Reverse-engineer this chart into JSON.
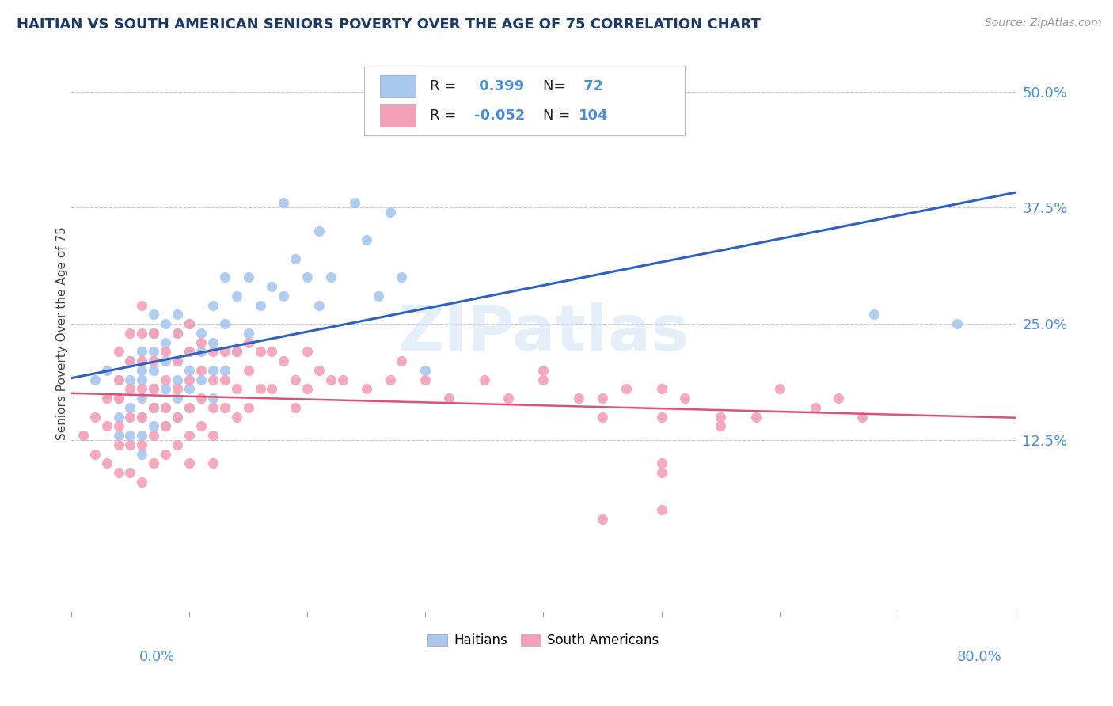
{
  "title": "HAITIAN VS SOUTH AMERICAN SENIORS POVERTY OVER THE AGE OF 75 CORRELATION CHART",
  "source": "Source: ZipAtlas.com",
  "ylabel": "Seniors Poverty Over the Age of 75",
  "haitian_R": 0.399,
  "haitian_N": 72,
  "southam_R": -0.052,
  "southam_N": 104,
  "haitian_color": "#A8C8F0",
  "southam_color": "#F4A0B8",
  "haitian_line_color": "#3060C0",
  "southam_line_color": "#E05070",
  "watermark": "ZIPatlas",
  "background_color": "#FFFFFF",
  "grid_color": "#C8C8D8",
  "title_color": "#1A3A6A",
  "tick_label_color": "#4A90D9",
  "legend_label_haitian": "Haitians",
  "legend_label_southam": "South Americans",
  "xmin": 0.0,
  "xmax": 0.8,
  "ymin": -0.06,
  "ymax": 0.54,
  "ytick_vals": [
    0.125,
    0.25,
    0.375,
    0.5
  ],
  "ytick_labels": [
    "12.5%",
    "25.0%",
    "37.5%",
    "50.0%"
  ],
  "haitian_x": [
    0.02,
    0.03,
    0.04,
    0.04,
    0.04,
    0.04,
    0.05,
    0.05,
    0.05,
    0.05,
    0.06,
    0.06,
    0.06,
    0.06,
    0.06,
    0.06,
    0.06,
    0.07,
    0.07,
    0.07,
    0.07,
    0.07,
    0.07,
    0.07,
    0.08,
    0.08,
    0.08,
    0.08,
    0.08,
    0.08,
    0.09,
    0.09,
    0.09,
    0.09,
    0.09,
    0.09,
    0.1,
    0.1,
    0.1,
    0.1,
    0.1,
    0.11,
    0.11,
    0.11,
    0.12,
    0.12,
    0.12,
    0.12,
    0.13,
    0.13,
    0.13,
    0.14,
    0.14,
    0.15,
    0.15,
    0.16,
    0.17,
    0.18,
    0.18,
    0.19,
    0.2,
    0.21,
    0.21,
    0.22,
    0.24,
    0.25,
    0.26,
    0.27,
    0.28,
    0.3,
    0.68,
    0.75
  ],
  "haitian_y": [
    0.19,
    0.2,
    0.19,
    0.17,
    0.15,
    0.13,
    0.21,
    0.19,
    0.16,
    0.13,
    0.22,
    0.2,
    0.19,
    0.17,
    0.15,
    0.13,
    0.11,
    0.26,
    0.24,
    0.22,
    0.2,
    0.18,
    0.16,
    0.14,
    0.25,
    0.23,
    0.21,
    0.18,
    0.16,
    0.14,
    0.26,
    0.24,
    0.21,
    0.19,
    0.17,
    0.15,
    0.25,
    0.22,
    0.2,
    0.18,
    0.16,
    0.24,
    0.22,
    0.19,
    0.27,
    0.23,
    0.2,
    0.17,
    0.3,
    0.25,
    0.2,
    0.28,
    0.22,
    0.3,
    0.24,
    0.27,
    0.29,
    0.38,
    0.28,
    0.32,
    0.3,
    0.35,
    0.27,
    0.3,
    0.38,
    0.34,
    0.28,
    0.37,
    0.3,
    0.2,
    0.26,
    0.25
  ],
  "southam_x": [
    0.01,
    0.02,
    0.02,
    0.03,
    0.03,
    0.03,
    0.04,
    0.04,
    0.04,
    0.04,
    0.04,
    0.04,
    0.05,
    0.05,
    0.05,
    0.05,
    0.05,
    0.05,
    0.06,
    0.06,
    0.06,
    0.06,
    0.06,
    0.06,
    0.06,
    0.07,
    0.07,
    0.07,
    0.07,
    0.07,
    0.07,
    0.08,
    0.08,
    0.08,
    0.08,
    0.08,
    0.09,
    0.09,
    0.09,
    0.09,
    0.09,
    0.1,
    0.1,
    0.1,
    0.1,
    0.1,
    0.1,
    0.11,
    0.11,
    0.11,
    0.11,
    0.12,
    0.12,
    0.12,
    0.12,
    0.12,
    0.13,
    0.13,
    0.13,
    0.14,
    0.14,
    0.14,
    0.15,
    0.15,
    0.15,
    0.16,
    0.16,
    0.17,
    0.17,
    0.18,
    0.19,
    0.19,
    0.2,
    0.2,
    0.21,
    0.22,
    0.23,
    0.25,
    0.27,
    0.28,
    0.3,
    0.32,
    0.35,
    0.37,
    0.4,
    0.43,
    0.45,
    0.47,
    0.5,
    0.52,
    0.55,
    0.58,
    0.6,
    0.63,
    0.65,
    0.67,
    0.4,
    0.5,
    0.55,
    0.45,
    0.5,
    0.5,
    0.45,
    0.5
  ],
  "southam_y": [
    0.13,
    0.11,
    0.15,
    0.17,
    0.14,
    0.1,
    0.22,
    0.19,
    0.17,
    0.14,
    0.12,
    0.09,
    0.24,
    0.21,
    0.18,
    0.15,
    0.12,
    0.09,
    0.27,
    0.24,
    0.21,
    0.18,
    0.15,
    0.12,
    0.08,
    0.24,
    0.21,
    0.18,
    0.16,
    0.13,
    0.1,
    0.22,
    0.19,
    0.16,
    0.14,
    0.11,
    0.24,
    0.21,
    0.18,
    0.15,
    0.12,
    0.25,
    0.22,
    0.19,
    0.16,
    0.13,
    0.1,
    0.23,
    0.2,
    0.17,
    0.14,
    0.22,
    0.19,
    0.16,
    0.13,
    0.1,
    0.22,
    0.19,
    0.16,
    0.22,
    0.18,
    0.15,
    0.23,
    0.2,
    0.16,
    0.22,
    0.18,
    0.22,
    0.18,
    0.21,
    0.19,
    0.16,
    0.22,
    0.18,
    0.2,
    0.19,
    0.19,
    0.18,
    0.19,
    0.21,
    0.19,
    0.17,
    0.19,
    0.17,
    0.19,
    0.17,
    0.15,
    0.18,
    0.09,
    0.17,
    0.14,
    0.15,
    0.18,
    0.16,
    0.17,
    0.15,
    0.2,
    0.1,
    0.15,
    0.04,
    0.05,
    0.18,
    0.17,
    0.15
  ]
}
